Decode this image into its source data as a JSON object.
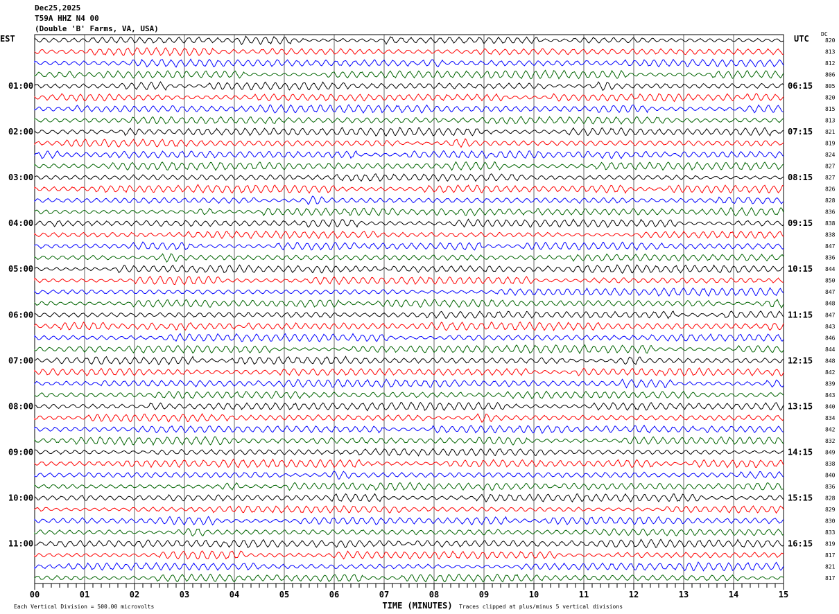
{
  "header": {
    "date": "Dec25,2025",
    "station": "T59A HHZ N4 00",
    "location": "(Double 'B' Farms, VA, USA)"
  },
  "chart_data": {
    "type": "line",
    "left_axis_title": "EST",
    "right_axis_title": "UTC",
    "dc_title": "DC",
    "xlabel": "TIME (MINUTES)",
    "xlim": [
      0,
      15
    ],
    "x_ticks": [
      "00",
      "01",
      "02",
      "03",
      "04",
      "05",
      "06",
      "07",
      "08",
      "09",
      "10",
      "11",
      "12",
      "13",
      "14",
      "15"
    ],
    "grid": true,
    "trace_colors": [
      "#000000",
      "#ff0000",
      "#0000ff",
      "#006400"
    ],
    "est_labels": [
      "",
      "01:00",
      "02:00",
      "03:00",
      "04:00",
      "05:00",
      "06:00",
      "07:00",
      "08:00",
      "09:00",
      "10:00",
      "11:00"
    ],
    "utc_labels": [
      "",
      "06:15",
      "07:15",
      "08:15",
      "09:15",
      "10:15",
      "11:15",
      "12:15",
      "13:15",
      "14:15",
      "15:15",
      "16:15"
    ],
    "dc_values": [
      "820",
      "813",
      "812",
      "806",
      "805",
      "820",
      "815",
      "813",
      "821",
      "819",
      "824",
      "827",
      "827",
      "826",
      "828",
      "836",
      "838",
      "838",
      "847",
      "836",
      "844",
      "850",
      "847",
      "848",
      "847",
      "843",
      "846",
      "844",
      "848",
      "842",
      "839",
      "843",
      "840",
      "834",
      "842",
      "832",
      "849",
      "838",
      "840",
      "836",
      "828",
      "829",
      "830",
      "833",
      "819",
      "817",
      "821",
      "817"
    ],
    "scale_note": "Each Vertical Division =  500.00 microvolts",
    "clip_note": "Traces clipped at plus/minus 5 vertical divisions"
  }
}
